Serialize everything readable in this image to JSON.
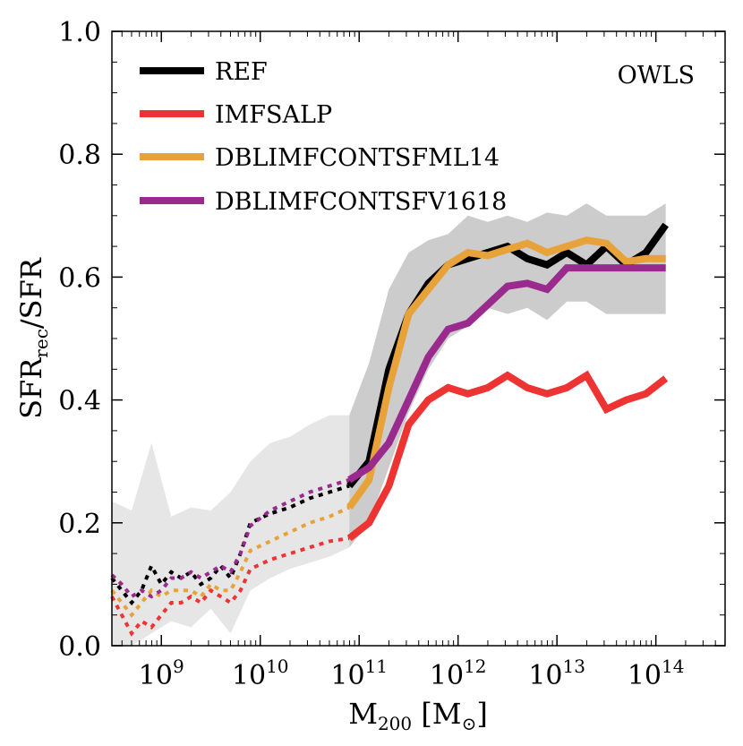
{
  "chart_data": {
    "type": "line",
    "title": "",
    "annotation": "OWLS",
    "xlabel": {
      "main": "M",
      "sub": "200",
      "unit_open": " [M",
      "unit_sub": "⊙",
      "unit_close": "]"
    },
    "ylabel": {
      "main": "SFR",
      "sub": "rec",
      "rest": "/SFR"
    },
    "x_scale": "log",
    "xlim_log10": [
      8.5,
      14.7
    ],
    "ylim": [
      0.0,
      1.0
    ],
    "x_ticks": [
      {
        "base": "10",
        "exp": "9",
        "log": 9
      },
      {
        "base": "10",
        "exp": "10",
        "log": 10
      },
      {
        "base": "10",
        "exp": "11",
        "log": 11
      },
      {
        "base": "10",
        "exp": "12",
        "log": 12
      },
      {
        "base": "10",
        "exp": "13",
        "log": 13
      },
      {
        "base": "10",
        "exp": "14",
        "log": 14
      }
    ],
    "y_ticks": [
      "0.0",
      "0.2",
      "0.4",
      "0.6",
      "0.8",
      "1.0"
    ],
    "y_tick_values": [
      0.0,
      0.2,
      0.4,
      0.6,
      0.8,
      1.0
    ],
    "resolution_split_log10": 10.9,
    "scatter_band": {
      "x_log10": [
        8.5,
        8.7,
        8.9,
        9.1,
        9.3,
        9.5,
        9.7,
        9.9,
        10.1,
        10.3,
        10.5,
        10.7,
        10.9,
        11.1,
        11.3,
        11.5,
        11.7,
        11.9,
        12.1,
        12.3,
        12.5,
        12.7,
        12.9,
        13.1,
        13.3,
        13.5,
        13.7,
        13.9,
        14.1
      ],
      "upper": [
        0.235,
        0.22,
        0.33,
        0.21,
        0.225,
        0.22,
        0.25,
        0.3,
        0.33,
        0.34,
        0.36,
        0.375,
        0.375,
        0.46,
        0.58,
        0.64,
        0.66,
        0.67,
        0.7,
        0.69,
        0.7,
        0.69,
        0.705,
        0.7,
        0.72,
        0.7,
        0.7,
        0.7,
        0.72
      ],
      "lower": [
        0.0,
        0.0,
        0.02,
        0.04,
        0.03,
        0.06,
        0.02,
        0.09,
        0.11,
        0.125,
        0.135,
        0.145,
        0.16,
        0.2,
        0.29,
        0.38,
        0.45,
        0.5,
        0.52,
        0.55,
        0.54,
        0.55,
        0.53,
        0.56,
        0.56,
        0.54,
        0.54,
        0.54,
        0.54
      ]
    },
    "series": [
      {
        "name": "REF",
        "color": "#000000",
        "x_log10": [
          8.5,
          8.6,
          8.7,
          8.8,
          8.9,
          9.0,
          9.1,
          9.2,
          9.3,
          9.4,
          9.5,
          9.6,
          9.7,
          9.8,
          9.9,
          10.1,
          10.3,
          10.5,
          10.7,
          10.9,
          11.1,
          11.3,
          11.5,
          11.7,
          11.9,
          12.1,
          12.3,
          12.5,
          12.7,
          12.9,
          13.1,
          13.3,
          13.5,
          13.7,
          13.9,
          14.1
        ],
        "values": [
          0.11,
          0.09,
          0.07,
          0.09,
          0.13,
          0.1,
          0.12,
          0.11,
          0.12,
          0.1,
          0.11,
          0.13,
          0.11,
          0.15,
          0.2,
          0.215,
          0.225,
          0.24,
          0.25,
          0.26,
          0.3,
          0.45,
          0.54,
          0.59,
          0.62,
          0.63,
          0.64,
          0.65,
          0.63,
          0.62,
          0.64,
          0.62,
          0.65,
          0.62,
          0.64,
          0.685
        ]
      },
      {
        "name": "IMFSALP",
        "color": "#ee3333",
        "x_log10": [
          8.5,
          8.6,
          8.7,
          8.8,
          8.9,
          9.0,
          9.1,
          9.2,
          9.3,
          9.4,
          9.5,
          9.6,
          9.7,
          9.8,
          9.9,
          10.1,
          10.3,
          10.5,
          10.7,
          10.9,
          11.1,
          11.3,
          11.5,
          11.7,
          11.9,
          12.1,
          12.3,
          12.5,
          12.7,
          12.9,
          13.1,
          13.3,
          13.5,
          13.7,
          13.9,
          14.1
        ],
        "values": [
          0.08,
          0.05,
          0.02,
          0.04,
          0.03,
          0.05,
          0.07,
          0.07,
          0.08,
          0.07,
          0.09,
          0.08,
          0.07,
          0.09,
          0.125,
          0.14,
          0.15,
          0.16,
          0.17,
          0.175,
          0.2,
          0.26,
          0.36,
          0.4,
          0.42,
          0.41,
          0.42,
          0.44,
          0.42,
          0.41,
          0.42,
          0.44,
          0.385,
          0.4,
          0.41,
          0.435
        ]
      },
      {
        "name": "DBLIMFCONTSFML14",
        "color": "#e8a23a",
        "x_log10": [
          8.5,
          8.6,
          8.7,
          8.8,
          8.9,
          9.0,
          9.1,
          9.2,
          9.3,
          9.4,
          9.5,
          9.6,
          9.7,
          9.8,
          9.9,
          10.1,
          10.3,
          10.5,
          10.7,
          10.9,
          11.1,
          11.3,
          11.5,
          11.7,
          11.9,
          12.1,
          12.3,
          12.5,
          12.7,
          12.9,
          13.1,
          13.3,
          13.5,
          13.7,
          13.9,
          14.1
        ],
        "values": [
          0.09,
          0.07,
          0.05,
          0.07,
          0.09,
          0.08,
          0.09,
          0.09,
          0.09,
          0.08,
          0.1,
          0.09,
          0.09,
          0.12,
          0.155,
          0.17,
          0.185,
          0.2,
          0.21,
          0.225,
          0.27,
          0.42,
          0.54,
          0.58,
          0.62,
          0.64,
          0.635,
          0.645,
          0.655,
          0.64,
          0.65,
          0.66,
          0.655,
          0.625,
          0.63,
          0.63
        ]
      },
      {
        "name": "DBLIMFCONTSFV1618",
        "color": "#9b2a8e",
        "x_log10": [
          8.5,
          8.6,
          8.7,
          8.8,
          8.9,
          9.0,
          9.1,
          9.2,
          9.3,
          9.4,
          9.5,
          9.6,
          9.7,
          9.8,
          9.9,
          10.1,
          10.3,
          10.5,
          10.7,
          10.9,
          11.1,
          11.3,
          11.5,
          11.7,
          11.9,
          12.1,
          12.3,
          12.5,
          12.7,
          12.9,
          13.1,
          13.3,
          13.5,
          13.7,
          13.9,
          14.1
        ],
        "values": [
          0.115,
          0.1,
          0.08,
          0.09,
          0.08,
          0.09,
          0.11,
          0.11,
          0.12,
          0.11,
          0.12,
          0.13,
          0.12,
          0.15,
          0.195,
          0.22,
          0.235,
          0.25,
          0.26,
          0.27,
          0.29,
          0.33,
          0.4,
          0.47,
          0.515,
          0.525,
          0.555,
          0.585,
          0.59,
          0.58,
          0.615,
          0.615,
          0.615,
          0.615,
          0.615,
          0.615
        ]
      }
    ],
    "legend_position": "top-left"
  }
}
